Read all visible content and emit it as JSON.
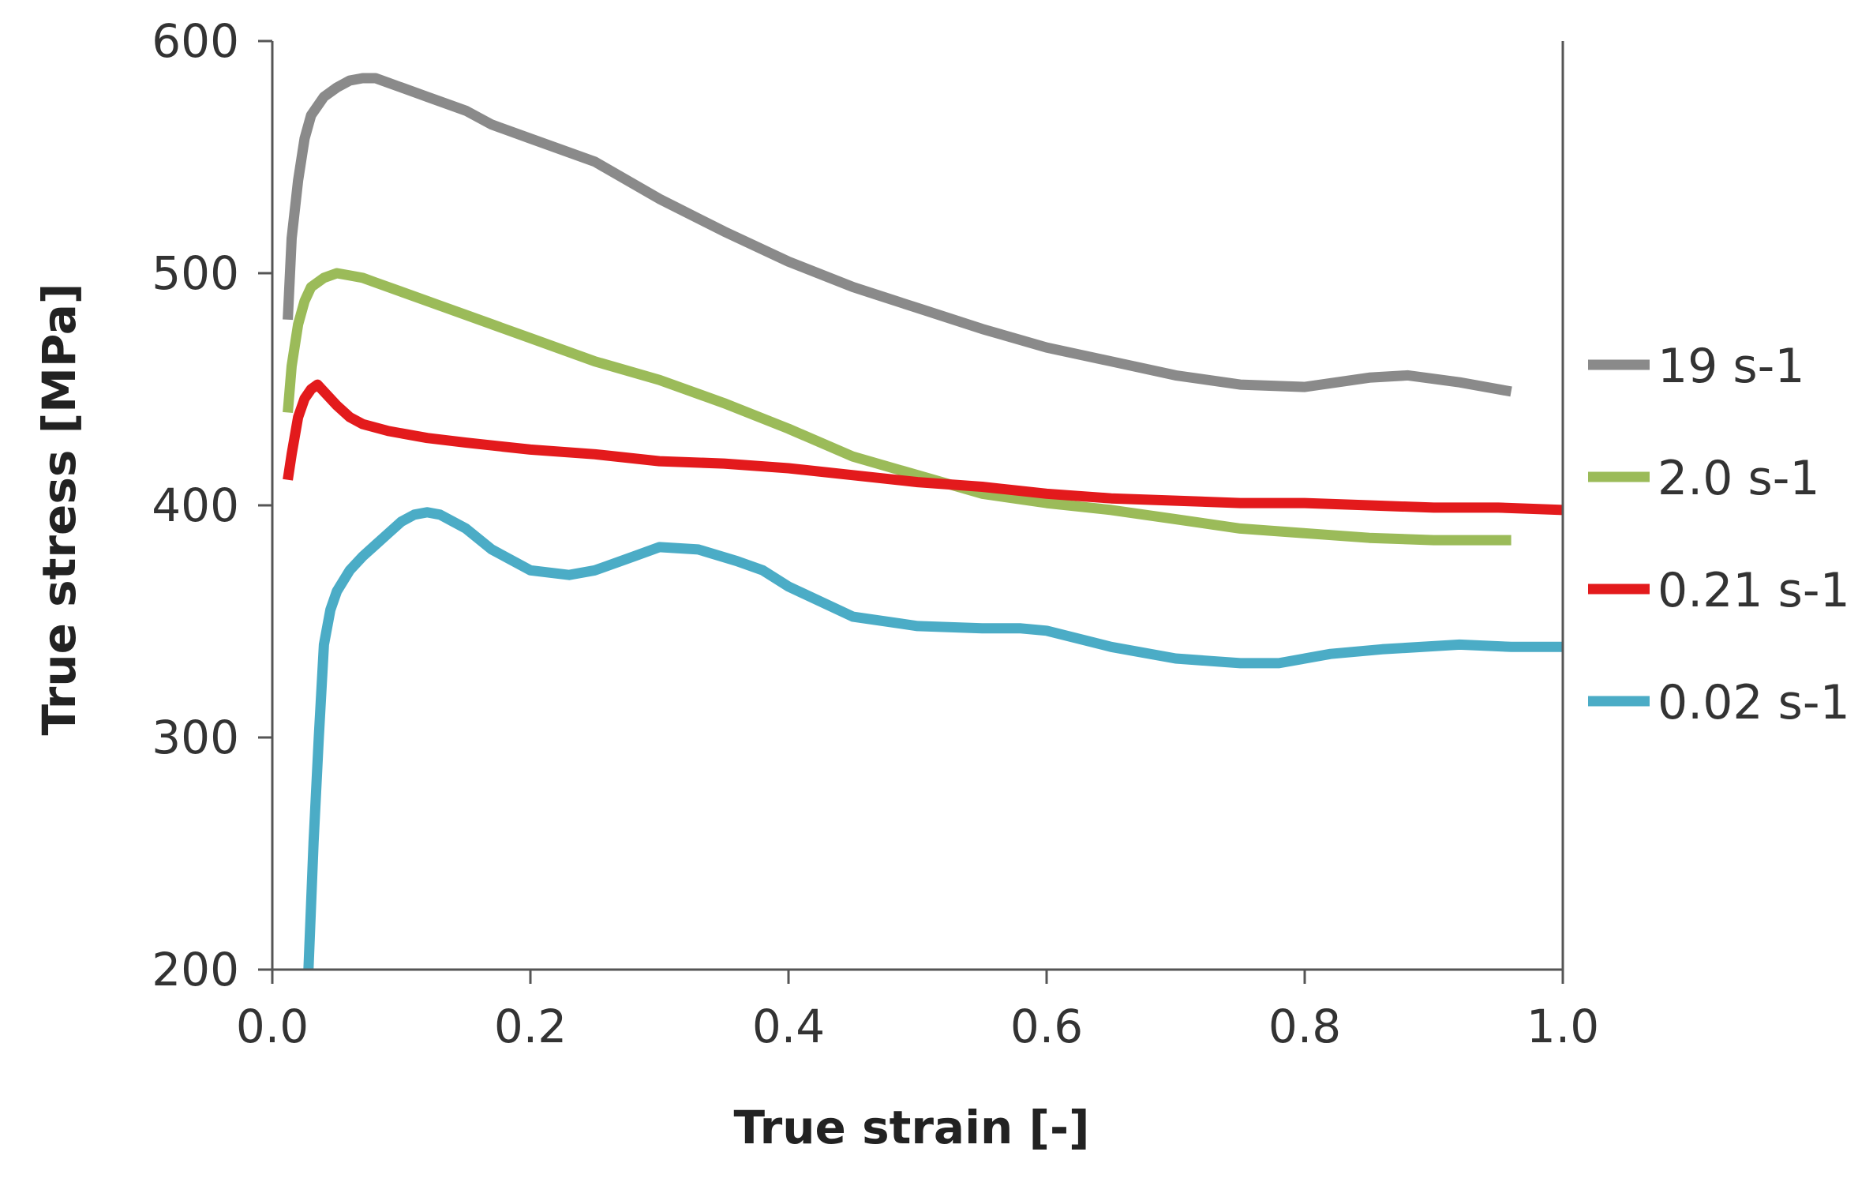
{
  "chart_data": {
    "type": "line",
    "xlabel": "True strain [-]",
    "ylabel": "True stress [MPa]",
    "xlim": [
      0.0,
      1.0
    ],
    "ylim": [
      200,
      600
    ],
    "xticks": [
      0.0,
      0.2,
      0.4,
      0.6,
      0.8,
      1.0
    ],
    "xtick_labels": [
      "0.0",
      "0.2",
      "0.4",
      "0.6",
      "0.8",
      "1.0"
    ],
    "yticks": [
      200,
      300,
      400,
      500,
      600
    ],
    "ytick_labels": [
      "200",
      "300",
      "400",
      "500",
      "600"
    ],
    "grid": false,
    "legend": "right",
    "series": [
      {
        "name": "19 s-1",
        "color": "#8a8a8a",
        "x": [
          0.012,
          0.015,
          0.02,
          0.025,
          0.03,
          0.04,
          0.05,
          0.06,
          0.07,
          0.08,
          0.09,
          0.1,
          0.12,
          0.15,
          0.17,
          0.2,
          0.25,
          0.3,
          0.35,
          0.4,
          0.45,
          0.5,
          0.55,
          0.6,
          0.65,
          0.7,
          0.75,
          0.8,
          0.85,
          0.88,
          0.92,
          0.96
        ],
        "y": [
          480,
          515,
          540,
          558,
          568,
          576,
          580,
          583,
          584,
          584,
          582,
          580,
          576,
          570,
          564,
          558,
          548,
          532,
          518,
          505,
          494,
          485,
          476,
          468,
          462,
          456,
          452,
          451,
          455,
          456,
          453,
          449
        ]
      },
      {
        "name": "2.0 s-1",
        "color": "#9bbb59",
        "x": [
          0.012,
          0.015,
          0.02,
          0.025,
          0.03,
          0.04,
          0.05,
          0.06,
          0.07,
          0.08,
          0.1,
          0.12,
          0.15,
          0.2,
          0.25,
          0.3,
          0.35,
          0.4,
          0.45,
          0.5,
          0.55,
          0.6,
          0.65,
          0.7,
          0.75,
          0.8,
          0.85,
          0.9,
          0.96
        ],
        "y": [
          440,
          460,
          478,
          488,
          494,
          498,
          500,
          499,
          498,
          496,
          492,
          488,
          482,
          472,
          462,
          454,
          444,
          433,
          421,
          413,
          405,
          401,
          398,
          394,
          390,
          388,
          386,
          385,
          385
        ]
      },
      {
        "name": "0.21 s-1",
        "color": "#e31a1c",
        "x": [
          0.012,
          0.015,
          0.02,
          0.025,
          0.03,
          0.035,
          0.04,
          0.05,
          0.06,
          0.07,
          0.09,
          0.12,
          0.15,
          0.2,
          0.25,
          0.3,
          0.35,
          0.4,
          0.45,
          0.5,
          0.55,
          0.6,
          0.65,
          0.7,
          0.75,
          0.8,
          0.85,
          0.9,
          0.95,
          1.0
        ],
        "y": [
          411,
          422,
          438,
          446,
          450,
          452,
          449,
          443,
          438,
          435,
          432,
          429,
          427,
          424,
          422,
          419,
          418,
          416,
          413,
          410,
          408,
          405,
          403,
          402,
          401,
          401,
          400,
          399,
          399,
          398
        ]
      },
      {
        "name": "0.02 s-1",
        "color": "#4bacc6",
        "x": [
          0.028,
          0.032,
          0.036,
          0.04,
          0.045,
          0.05,
          0.06,
          0.07,
          0.08,
          0.09,
          0.1,
          0.11,
          0.12,
          0.13,
          0.15,
          0.17,
          0.2,
          0.23,
          0.25,
          0.28,
          0.3,
          0.33,
          0.36,
          0.38,
          0.4,
          0.45,
          0.5,
          0.55,
          0.58,
          0.6,
          0.65,
          0.7,
          0.75,
          0.78,
          0.82,
          0.86,
          0.92,
          0.96,
          1.0
        ],
        "y": [
          200,
          255,
          300,
          340,
          355,
          363,
          372,
          378,
          383,
          388,
          393,
          396,
          397,
          396,
          390,
          381,
          372,
          370,
          372,
          378,
          382,
          381,
          376,
          372,
          365,
          352,
          348,
          347,
          347,
          346,
          339,
          334,
          332,
          332,
          336,
          338,
          340,
          339,
          339
        ]
      }
    ]
  }
}
